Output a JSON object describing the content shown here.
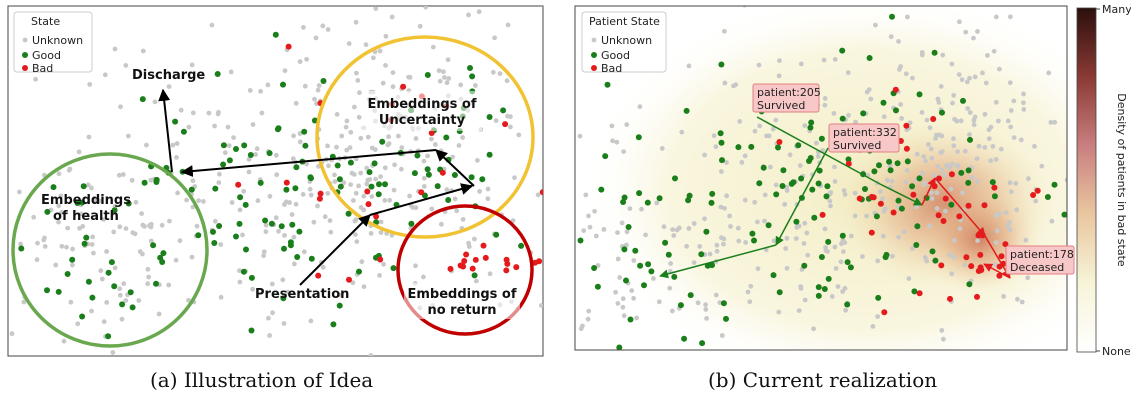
{
  "chart_data": [
    {
      "type": "scatter",
      "panel": "a",
      "caption": "(a) Illustration of Idea",
      "legend": {
        "title": "State",
        "placement": "top-left",
        "entries": [
          {
            "label": "Unknown",
            "color": "#c8c8c8"
          },
          {
            "label": "Good",
            "color": "#1a7f1a"
          },
          {
            "label": "Bad",
            "color": "#e41a1c"
          }
        ]
      },
      "grid": false,
      "axes_ticks": false,
      "region_labels": {
        "health": "Embeddings\nof health",
        "uncertainty": "Embeddings of\nUncertainty",
        "no_return": "Embeddings of\nno return"
      },
      "annotations": {
        "discharge": "Discharge",
        "presentation": "Presentation"
      },
      "region_colors": {
        "health": "#6aa84f",
        "uncertainty": "#f1c232",
        "no_return": "#c00000"
      }
    },
    {
      "type": "scatter",
      "panel": "b",
      "caption": "(b) Current realization",
      "legend": {
        "title": "Patient State",
        "placement": "top-left",
        "entries": [
          {
            "label": "Unknown",
            "color": "#c8c8c8"
          },
          {
            "label": "Good",
            "color": "#1a7f1a"
          },
          {
            "label": "Bad",
            "color": "#e41a1c"
          }
        ]
      },
      "grid": false,
      "axes_ticks": false,
      "patient_labels": [
        {
          "id": "p205",
          "text": "patient:205\nSurvived"
        },
        {
          "id": "p332",
          "text": "patient:332\nSurvived"
        },
        {
          "id": "p178",
          "text": "patient:178\nDeceased"
        }
      ],
      "colorbar": {
        "label": "Density of patients in bad state",
        "top": "Many",
        "bottom": "None",
        "colors": [
          "#2b0f0c",
          "#8a3a34",
          "#c97f7f",
          "#e9c7a0",
          "#f7f4d8",
          "#ffffff"
        ]
      }
    }
  ]
}
